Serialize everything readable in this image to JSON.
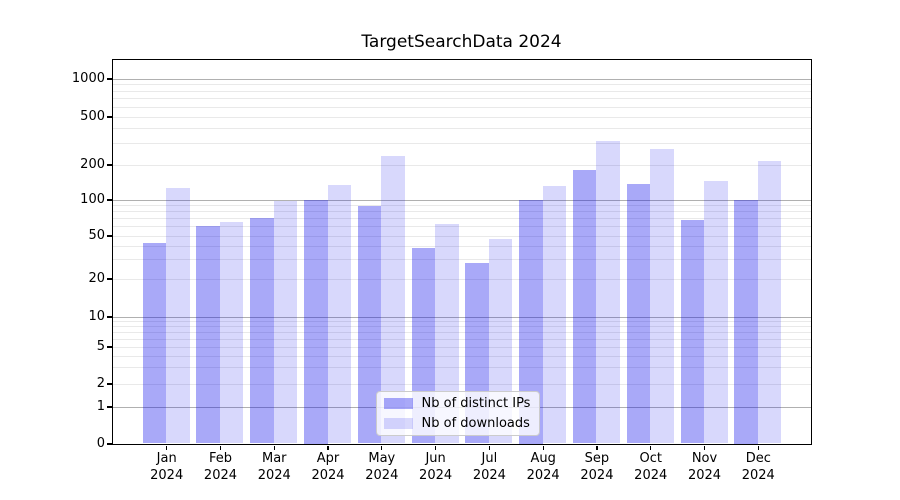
{
  "title": "TargetSearchData 2024",
  "chart_data": {
    "type": "bar",
    "title": "TargetSearchData 2024",
    "categories": [
      "Jan",
      "Feb",
      "Mar",
      "Apr",
      "May",
      "Jun",
      "Jul",
      "Aug",
      "Sep",
      "Oct",
      "Nov",
      "Dec"
    ],
    "x_year_line": "2024",
    "series": [
      {
        "name": "Nb of distinct IPs",
        "values": [
          43,
          60,
          70,
          100,
          88,
          38,
          28,
          100,
          180,
          135,
          68,
          100
        ]
      },
      {
        "name": "Nb of downloads",
        "values": [
          125,
          65,
          98,
          133,
          235,
          62,
          46,
          130,
          315,
          270,
          145,
          215
        ]
      }
    ],
    "y_axis": {
      "scale": "symlog",
      "ticks": [
        0,
        1,
        2,
        5,
        10,
        20,
        50,
        100,
        200,
        500,
        1000
      ],
      "ylim": [
        0,
        1400
      ],
      "major_grid_at": [
        1,
        10,
        100,
        1000
      ]
    },
    "grid": "major+minor horizontal",
    "legend": {
      "position": "lower-center",
      "entries": [
        "Nb of distinct IPs",
        "Nb of downloads"
      ]
    }
  },
  "colors": {
    "bar_ips": "rgba(10,10,235,0.35)",
    "bar_downloads": "rgba(12,12,235,0.16)",
    "grid_major": "#b0b0b0",
    "grid_minor": "#e9e9e9",
    "spine": "#000000",
    "legend_border": "#cccccc",
    "legend_bg": "rgba(255,255,255,0.8)",
    "title_color": "#000000"
  }
}
